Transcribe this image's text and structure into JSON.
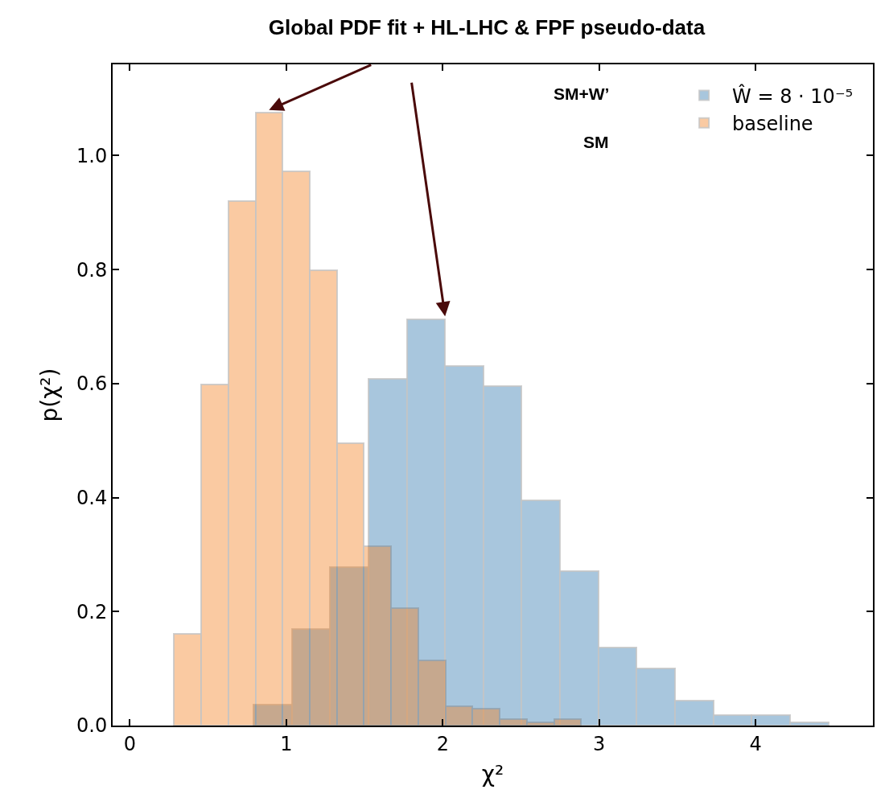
{
  "chart_data": {
    "type": "histogram",
    "title": "Global PDF fit + HL-LHC & FPF pseudo-data",
    "xlabel": "χ²",
    "ylabel": "p(χ²)",
    "series": [
      {
        "name": "Ŵ = 8 · 10⁻⁵",
        "color": "#2873ac",
        "bins": [
          0.79,
          1.035,
          1.28,
          1.525,
          1.77,
          2.015,
          2.26,
          2.505,
          2.75,
          2.995,
          3.24,
          3.485,
          3.73,
          3.975,
          4.22,
          4.465
        ],
        "values": [
          0.036,
          0.17,
          0.278,
          0.608,
          0.713,
          0.631,
          0.596,
          0.395,
          0.271,
          0.137,
          0.1,
          0.044,
          0.019,
          0.019,
          0.006
        ]
      },
      {
        "name": "baseline",
        "color": "#f57d19",
        "values": [
          0.161,
          0.599,
          0.92,
          1.075,
          0.972,
          0.799,
          0.495,
          0.314,
          0.206,
          0.114,
          0.034,
          0.03,
          0.012,
          0.005,
          0.011
        ]
      }
    ],
    "bins": [
      0.282,
      0.456,
      0.629,
      0.803,
      0.976,
      1.15,
      1.323,
      1.497,
      1.67,
      1.844,
      2.017,
      2.191,
      2.364,
      2.538,
      2.711,
      2.885
    ],
    "annotations": [
      "SM+W’",
      "SM"
    ],
    "xlim": [
      -0.11,
      4.75
    ],
    "ylim": [
      0,
      1.16
    ],
    "xticks": [
      0,
      1,
      2,
      3,
      4
    ],
    "yticks": [
      {
        "value": 0,
        "label": "0.0"
      },
      {
        "value": 0.2,
        "label": "0.2"
      },
      {
        "value": 0.4,
        "label": "0.4"
      },
      {
        "value": 0.6,
        "label": "0.6"
      },
      {
        "value": 0.8,
        "label": "0.8"
      },
      {
        "value": 1.0,
        "label": "1.0"
      }
    ],
    "legend": "top right"
  }
}
